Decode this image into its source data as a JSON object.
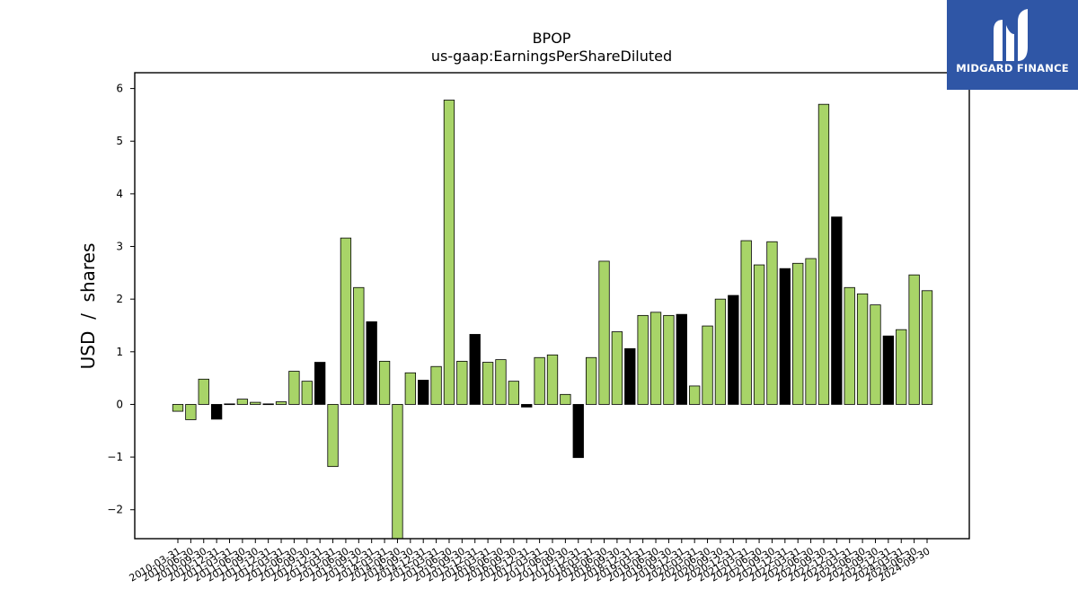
{
  "logo": {
    "text": "MIDGARD FINANCE",
    "bg_color": "#2f56a6",
    "icon": "midgard-m-logo-icon"
  },
  "colors": {
    "positive_bar": "#a8d468",
    "highlight_bar": "#000000",
    "bar_edge": "#000000"
  },
  "chart_data": {
    "type": "bar",
    "title": "BPOP",
    "subtitle": "us-gaap:EarningsPerShareDiluted",
    "xlabel": "",
    "ylabel": "USD  /  shares",
    "ylim": [
      -2.55,
      6.3
    ],
    "yticks": [
      -2,
      -1,
      0,
      1,
      2,
      3,
      4,
      5,
      6
    ],
    "grid": false,
    "categories": [
      "2010-03-31",
      "2010-06-30",
      "2010-09-30",
      "2010-12-31",
      "2011-03-31",
      "2011-06-30",
      "2011-09-30",
      "2011-12-31",
      "2012-03-31",
      "2012-06-30",
      "2012-09-30",
      "2012-12-31",
      "2013-03-31",
      "2013-06-30",
      "2013-09-30",
      "2013-12-31",
      "2014-03-31",
      "2014-06-30",
      "2014-09-30",
      "2014-12-31",
      "2015-03-31",
      "2015-06-30",
      "2015-09-30",
      "2015-12-31",
      "2016-03-31",
      "2016-06-30",
      "2016-09-30",
      "2016-12-31",
      "2017-03-31",
      "2017-06-30",
      "2017-09-30",
      "2017-12-31",
      "2018-03-31",
      "2018-06-30",
      "2018-09-30",
      "2018-12-31",
      "2019-03-31",
      "2019-06-30",
      "2019-09-30",
      "2019-12-31",
      "2020-03-31",
      "2020-06-30",
      "2020-09-30",
      "2020-12-31",
      "2021-03-31",
      "2021-06-30",
      "2021-09-30",
      "2021-12-31",
      "2022-03-31",
      "2022-06-30",
      "2022-09-30",
      "2022-12-31",
      "2023-03-31",
      "2023-06-30",
      "2023-09-30",
      "2023-12-31",
      "2024-03-31",
      "2024-06-30",
      "2024-09-30"
    ],
    "values": [
      -0.13,
      -0.29,
      0.48,
      -0.28,
      0.01,
      0.1,
      0.04,
      0.01,
      0.05,
      0.63,
      0.44,
      0.8,
      -1.18,
      3.16,
      2.22,
      1.57,
      0.82,
      -2.6,
      0.6,
      0.46,
      0.72,
      5.78,
      0.82,
      1.33,
      0.8,
      0.85,
      0.44,
      -0.05,
      0.89,
      0.94,
      0.19,
      -1.01,
      0.89,
      2.72,
      1.38,
      1.06,
      1.69,
      1.75,
      1.69,
      1.71,
      0.35,
      1.49,
      2.0,
      2.07,
      3.11,
      2.65,
      3.09,
      2.58,
      2.68,
      2.77,
      5.7,
      3.56,
      2.22,
      2.1,
      1.89,
      1.3,
      1.42,
      2.46,
      2.16
    ],
    "highlight": [
      false,
      false,
      false,
      true,
      false,
      false,
      false,
      false,
      false,
      false,
      false,
      true,
      false,
      false,
      false,
      true,
      false,
      false,
      false,
      true,
      false,
      false,
      false,
      true,
      false,
      false,
      false,
      true,
      false,
      false,
      false,
      true,
      false,
      false,
      false,
      true,
      false,
      false,
      false,
      true,
      false,
      false,
      false,
      true,
      false,
      false,
      false,
      true,
      false,
      false,
      false,
      true,
      false,
      false,
      false,
      true,
      false,
      false,
      false
    ]
  }
}
